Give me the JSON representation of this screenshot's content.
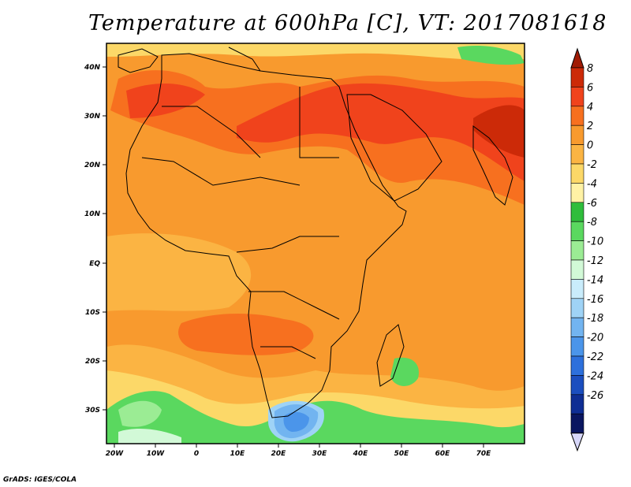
{
  "title": "Temperature at 600hPa [C], VT: 2017081618",
  "credit": "GrADS: IGES/COLA",
  "map": {
    "lon_ticks": [
      "20W",
      "10W",
      "0",
      "10E",
      "20E",
      "30E",
      "40E",
      "50E",
      "60E",
      "70E"
    ],
    "lat_ticks": [
      "40N",
      "30N",
      "20N",
      "10N",
      "EQ",
      "10S",
      "20S",
      "30S"
    ]
  },
  "colorbar": {
    "labels": [
      "8",
      "6",
      "4",
      "2",
      "0",
      "-2",
      "-4",
      "-6",
      "-8",
      "-10",
      "-12",
      "-14",
      "-16",
      "-18",
      "-20",
      "-22",
      "-24",
      "-26"
    ],
    "colors": [
      "#cc2a08",
      "#f0431c",
      "#f7701f",
      "#f89a2e",
      "#fbb443",
      "#fcd868",
      "#fff2a5",
      "#2fbd3c",
      "#5ad85f",
      "#9bec94",
      "#d2f9d7",
      "#c9ecfb",
      "#9fd3f6",
      "#72b4f0",
      "#4b95ea",
      "#2d70dc",
      "#1b4ebf",
      "#0f2e94",
      "#0a1660"
    ],
    "over_color": "#a01b04",
    "under_color": "#d7d7f9"
  },
  "chart_data": {
    "type": "heatmap",
    "title": "Temperature at 600hPa [C], VT: 2017081618",
    "variable": "Temperature at 600hPa",
    "units": "C",
    "valid_time": "2017081618",
    "lon_range": [
      -22,
      80
    ],
    "lat_range": [
      -37,
      45
    ],
    "levels": [
      8,
      6,
      4,
      2,
      0,
      -2,
      -4,
      -6,
      -8,
      -10,
      -12,
      -14,
      -16,
      -18,
      -20,
      -22,
      -24,
      -26
    ]
  }
}
